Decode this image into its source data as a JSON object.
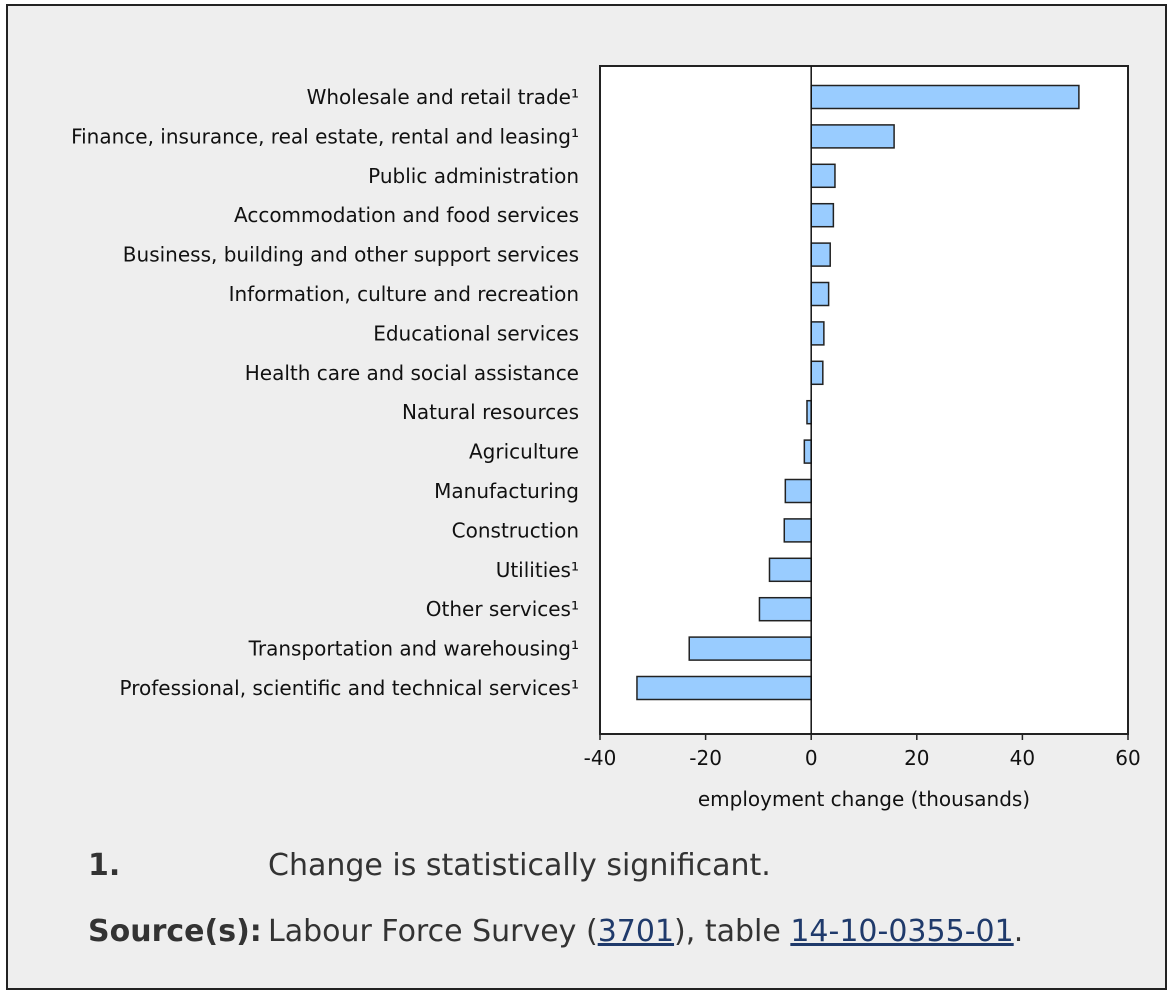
{
  "chart_data": {
    "type": "bar",
    "orientation": "horizontal",
    "categories": [
      "Wholesale and retail trade¹",
      "Finance, insurance, real estate, rental and leasing¹",
      "Public administration",
      "Accommodation and food services",
      "Business, building and other support services",
      "Information, culture and recreation",
      "Educational services",
      "Health care and social assistance",
      "Natural resources",
      "Agriculture",
      "Manufacturing",
      "Construction",
      "Utilities¹",
      "Other services¹",
      "Transportation and warehousing¹",
      "Professional, scientific and technical services¹"
    ],
    "values": [
      50.7,
      15.7,
      4.5,
      4.2,
      3.6,
      3.3,
      2.4,
      2.2,
      -0.8,
      -1.3,
      -4.9,
      -5.1,
      -7.9,
      -9.8,
      -23.1,
      -33.0
    ],
    "xlabel": "employment change (thousands)",
    "ylabel": "",
    "xlim": [
      -40,
      60
    ],
    "xticks": [
      -40,
      -20,
      0,
      20,
      40,
      60
    ],
    "grid": false,
    "bar_color": "#99ccff"
  },
  "notes": {
    "footnote_key": "1.",
    "footnote_text": "Change is statistically significant.",
    "source_key": "Source(s):",
    "source_prefix": "Labour Force Survey (",
    "source_code": "3701",
    "source_middle": "), table ",
    "source_table": "14-10-0355-01",
    "source_suffix": "."
  }
}
